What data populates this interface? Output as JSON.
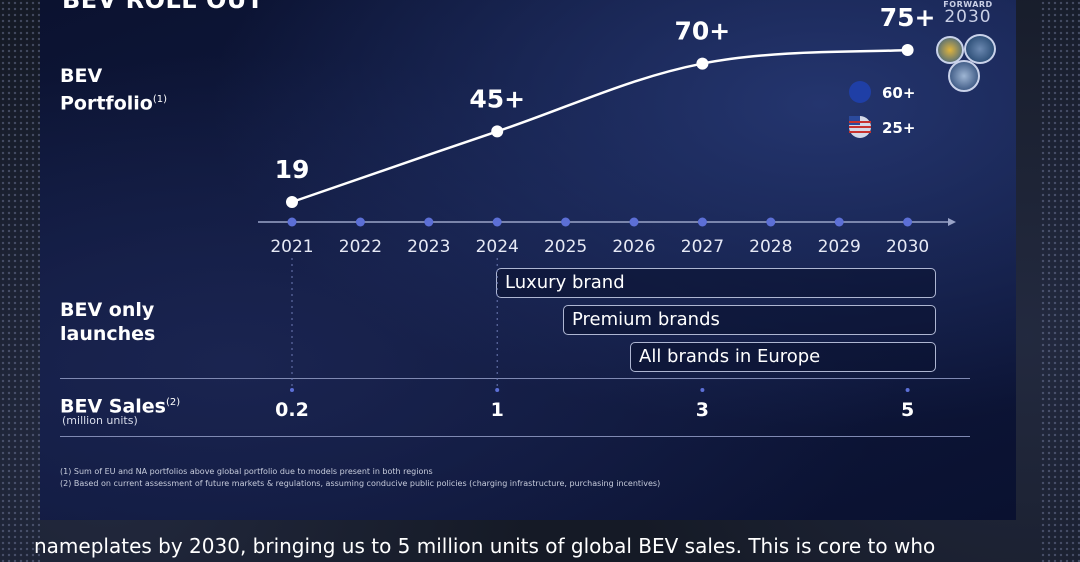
{
  "slide": {
    "title": "BEV ROLL OUT",
    "logo_line1": "FORWARD",
    "logo_line2": "2030"
  },
  "rows": {
    "portfolio_label_line1": "BEV",
    "portfolio_label_line2": "Portfolio",
    "portfolio_marker": "(1)",
    "launches_label_line1": "BEV only",
    "launches_label_line2": "launches",
    "sales_label": "BEV Sales",
    "sales_marker": "(2)",
    "sales_sublabel": "(million units)"
  },
  "legend": [
    {
      "region": "EU flag",
      "value": "60+"
    },
    {
      "region": "US flag",
      "value": "25+"
    }
  ],
  "launches": [
    {
      "label": "Luxury brand",
      "start_year": 2024,
      "end_year": 2030
    },
    {
      "label": "Premium brands",
      "start_year": 2025,
      "end_year": 2030
    },
    {
      "label": "All brands in Europe",
      "start_year": 2026,
      "end_year": 2030
    }
  ],
  "chart_data": {
    "type": "line",
    "title": "BEV ROLL OUT",
    "x": [
      2021,
      2022,
      2023,
      2024,
      2025,
      2026,
      2027,
      2028,
      2029,
      2030
    ],
    "x_tick_labels": [
      "2021",
      "2022",
      "2023",
      "2024",
      "2025",
      "2026",
      "2027",
      "2028",
      "2029",
      "2030"
    ],
    "series": [
      {
        "name": "BEV Portfolio",
        "points": [
          {
            "x": 2021,
            "y": 19,
            "label": "19"
          },
          {
            "x": 2024,
            "y": 45,
            "label": "45+"
          },
          {
            "x": 2027,
            "y": 70,
            "label": "70+"
          },
          {
            "x": 2030,
            "y": 75,
            "label": "75+"
          }
        ]
      }
    ],
    "sales": [
      {
        "x": 2021,
        "value": 0.2,
        "label": "0.2"
      },
      {
        "x": 2024,
        "value": 1,
        "label": "1"
      },
      {
        "x": 2027,
        "value": 3,
        "label": "3"
      },
      {
        "x": 2030,
        "value": 5,
        "label": "5"
      }
    ],
    "ylim": [
      15,
      80
    ],
    "grid": false,
    "legend": "none"
  },
  "footnotes": [
    "(1) Sum of EU and NA portfolios above global portfolio due to models present in both regions",
    "(2) Based on current assessment of future markets & regulations, assuming conducive public policies (charging infrastructure, purchasing incentives)"
  ],
  "caption": "nameplates by 2030, bringing us to 5 million units of global BEV sales. This is core to who",
  "colors": {
    "axis": "#9aa4c8",
    "tick_dot": "#5c6fd6",
    "line": "#ffffff",
    "text": "#ffffff"
  }
}
